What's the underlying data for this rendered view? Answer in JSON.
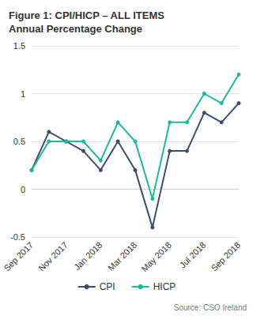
{
  "chart_data": {
    "type": "line",
    "title": "Figure 1: CPI/HICP – ALL ITEMS Annual Percentage Change",
    "annotation": "Source: CSO Ireland",
    "categories": [
      "Sep 2017",
      null,
      "Nov 2017",
      null,
      "Jan 2018",
      null,
      "Mar 2018",
      null,
      "May 2018",
      null,
      "Jul 2018",
      null,
      "Sep 2018"
    ],
    "series": [
      {
        "name": "CPI",
        "color": "#3d4b6e",
        "values": [
          0.2,
          0.6,
          0.5,
          0.4,
          0.2,
          0.5,
          0.2,
          -0.4,
          0.4,
          0.4,
          0.8,
          0.7,
          0.9
        ]
      },
      {
        "name": "HICP",
        "color": "#1fb89a",
        "values": [
          0.2,
          0.5,
          0.5,
          0.5,
          0.3,
          0.7,
          0.5,
          -0.1,
          0.7,
          0.7,
          1.0,
          0.9,
          1.2
        ]
      }
    ],
    "ylim": [
      -0.5,
      1.5
    ],
    "yticks": [
      -0.5,
      0,
      0.5,
      1,
      1.5
    ],
    "grid": true,
    "legend": "bottom",
    "marker": "circle",
    "line_style": "solid"
  }
}
